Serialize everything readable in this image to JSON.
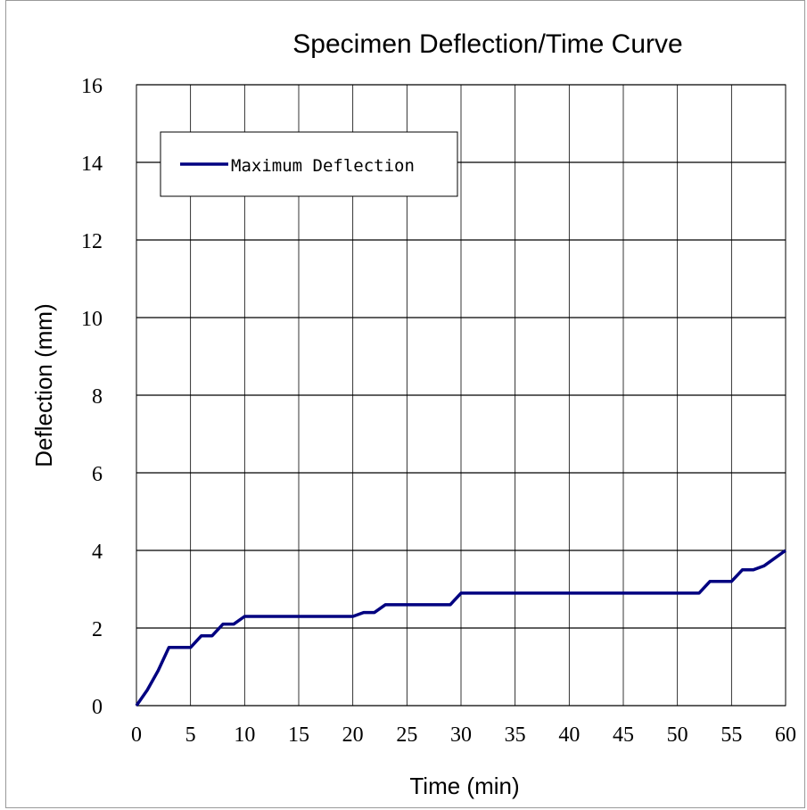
{
  "chart_data": {
    "type": "line",
    "title": "Specimen Deflection/Time Curve",
    "xlabel": "Time (min)",
    "ylabel": "Deflection (mm)",
    "xlim": [
      0,
      60
    ],
    "ylim": [
      0,
      16
    ],
    "xticks": [
      0,
      5,
      10,
      15,
      20,
      25,
      30,
      35,
      40,
      45,
      50,
      55,
      60
    ],
    "yticks": [
      0,
      2,
      4,
      6,
      8,
      10,
      12,
      14,
      16
    ],
    "grid": true,
    "legend_position": "top-left",
    "series": [
      {
        "name": "Maximum Deflection",
        "color": "#000080",
        "x": [
          0,
          1,
          2,
          3,
          4,
          5,
          6,
          7,
          8,
          9,
          10,
          11,
          12,
          13,
          14,
          15,
          16,
          17,
          18,
          19,
          20,
          21,
          22,
          23,
          24,
          25,
          26,
          27,
          28,
          29,
          30,
          35,
          40,
          45,
          50,
          51,
          52,
          53,
          54,
          55,
          56,
          57,
          58,
          59,
          60
        ],
        "y": [
          0,
          0.4,
          0.9,
          1.5,
          1.5,
          1.5,
          1.8,
          1.8,
          2.1,
          2.1,
          2.3,
          2.3,
          2.3,
          2.3,
          2.3,
          2.3,
          2.3,
          2.3,
          2.3,
          2.3,
          2.3,
          2.4,
          2.4,
          2.6,
          2.6,
          2.6,
          2.6,
          2.6,
          2.6,
          2.6,
          2.9,
          2.9,
          2.9,
          2.9,
          2.9,
          2.9,
          2.9,
          3.2,
          3.2,
          3.2,
          3.5,
          3.5,
          3.6,
          3.8,
          4.0
        ]
      }
    ]
  }
}
